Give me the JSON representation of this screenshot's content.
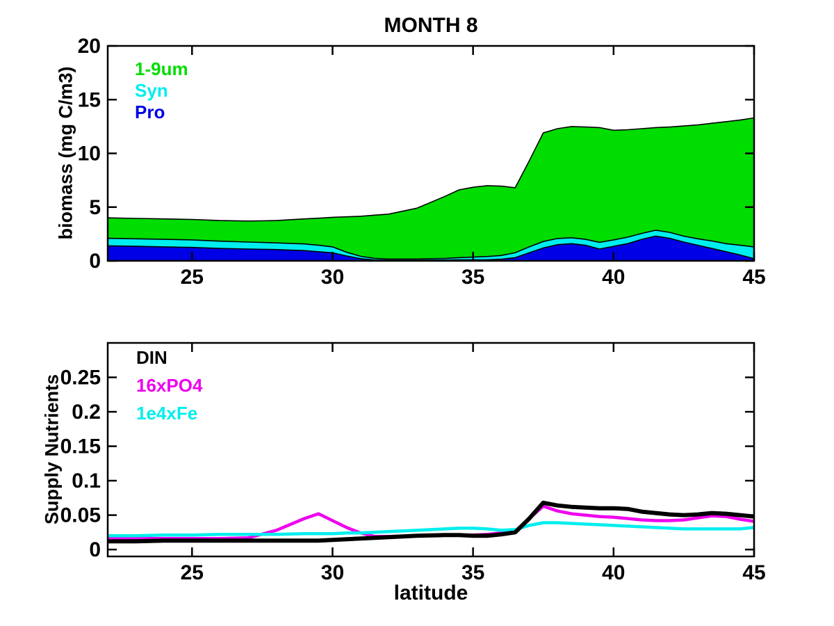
{
  "figure": {
    "title": "MONTH 8",
    "background": "#FFFFFF"
  },
  "chart_data": [
    {
      "id": "biomass-stacked-area",
      "type": "area",
      "title": "MONTH 8",
      "xlabel": "",
      "ylabel": "biomass (mg C/m3)",
      "xlim": [
        22,
        45
      ],
      "ylim": [
        0,
        20
      ],
      "xticks": [
        25,
        30,
        35,
        40,
        45
      ],
      "xtick_labels": [
        "25",
        "30",
        "35",
        "40",
        "45"
      ],
      "yticks": [
        0,
        5,
        10,
        15,
        20
      ],
      "ytick_labels": [
        "0",
        "5",
        "10",
        "15",
        "20"
      ],
      "grid": false,
      "legend_position": "top-left-inside",
      "stacking": "series values are cumulative upper boundaries, stacked from the x-axis (Pro bottom, Syn middle, 1-9um top)",
      "outline_color": "#000000",
      "x": [
        22,
        23,
        24,
        25,
        26,
        27,
        28,
        29,
        29.5,
        30,
        30.5,
        31,
        31.5,
        32,
        33,
        34,
        34.5,
        35,
        35.5,
        36,
        36.5,
        37,
        37.5,
        38,
        38.5,
        39,
        39.5,
        40,
        40.5,
        41,
        41.5,
        42,
        42.5,
        43,
        43.5,
        44,
        44.5,
        45
      ],
      "series": [
        {
          "name": "Pro",
          "color": "#0000E6",
          "cumulative_boundary": [
            1.4,
            1.35,
            1.3,
            1.25,
            1.15,
            1.1,
            1.05,
            0.95,
            0.85,
            0.75,
            0.45,
            0.2,
            0.08,
            0.05,
            0.05,
            0.08,
            0.1,
            0.1,
            0.1,
            0.15,
            0.3,
            0.75,
            1.2,
            1.5,
            1.6,
            1.45,
            1.1,
            1.35,
            1.6,
            2.0,
            2.3,
            2.1,
            1.75,
            1.45,
            1.15,
            0.85,
            0.55,
            0.2
          ]
        },
        {
          "name": "Syn",
          "color": "#00EEEE",
          "cumulative_boundary": [
            2.1,
            2.05,
            2.0,
            1.95,
            1.83,
            1.75,
            1.67,
            1.57,
            1.45,
            1.3,
            0.8,
            0.42,
            0.23,
            0.17,
            0.17,
            0.23,
            0.3,
            0.35,
            0.4,
            0.5,
            0.75,
            1.3,
            1.8,
            2.08,
            2.15,
            2.0,
            1.72,
            1.95,
            2.2,
            2.55,
            2.85,
            2.65,
            2.3,
            2.05,
            1.85,
            1.6,
            1.45,
            1.3
          ]
        },
        {
          "name": "1-9um",
          "color": "#00DD00",
          "cumulative_boundary": [
            4.0,
            3.95,
            3.9,
            3.85,
            3.75,
            3.7,
            3.75,
            3.9,
            3.97,
            4.05,
            4.1,
            4.15,
            4.25,
            4.35,
            4.9,
            6.0,
            6.6,
            6.85,
            7.0,
            6.95,
            6.8,
            9.3,
            11.9,
            12.3,
            12.5,
            12.45,
            12.4,
            12.15,
            12.2,
            12.3,
            12.4,
            12.45,
            12.55,
            12.65,
            12.8,
            12.95,
            13.1,
            13.3
          ]
        }
      ],
      "legend_order": [
        "1-9um",
        "Syn",
        "Pro"
      ]
    },
    {
      "id": "supply-nutrients-lines",
      "type": "line",
      "title": "",
      "xlabel": "latitude",
      "ylabel": "Supply Nutrients",
      "xlim": [
        22,
        45
      ],
      "ylim": [
        -0.01,
        0.3
      ],
      "xticks": [
        25,
        30,
        35,
        40,
        45
      ],
      "xtick_labels": [
        "25",
        "30",
        "35",
        "40",
        "45"
      ],
      "yticks": [
        0,
        0.05,
        0.1,
        0.15,
        0.2,
        0.25
      ],
      "ytick_labels": [
        "0",
        "0.05",
        "0.1",
        "0.15",
        "0.2",
        "0.25"
      ],
      "grid": false,
      "legend_position": "top-left-inside",
      "x": [
        22,
        23,
        24,
        25,
        26,
        27,
        28,
        29,
        29.5,
        30,
        30.5,
        31,
        31.5,
        32,
        33,
        34,
        34.5,
        35,
        35.5,
        36,
        36.5,
        37,
        37.5,
        38,
        38.5,
        39,
        39.5,
        40,
        40.5,
        41,
        41.5,
        42,
        42.5,
        43,
        43.5,
        44,
        44.5,
        45
      ],
      "series": [
        {
          "name": "DIN",
          "color": "#000000",
          "line_width": 6,
          "values": [
            0.012,
            0.012,
            0.013,
            0.013,
            0.013,
            0.013,
            0.013,
            0.013,
            0.013,
            0.014,
            0.015,
            0.016,
            0.017,
            0.018,
            0.02,
            0.021,
            0.021,
            0.02,
            0.02,
            0.022,
            0.025,
            0.045,
            0.068,
            0.064,
            0.062,
            0.061,
            0.06,
            0.06,
            0.059,
            0.055,
            0.053,
            0.051,
            0.05,
            0.051,
            0.053,
            0.052,
            0.05,
            0.048
          ]
        },
        {
          "name": "16xPO4",
          "color": "#EE00EE",
          "line_width": 4.5,
          "values": [
            0.016,
            0.016,
            0.016,
            0.016,
            0.016,
            0.017,
            0.028,
            0.045,
            0.052,
            0.042,
            0.032,
            0.024,
            0.019,
            0.019,
            0.02,
            0.021,
            0.021,
            0.021,
            0.022,
            0.024,
            0.027,
            0.045,
            0.063,
            0.056,
            0.052,
            0.05,
            0.048,
            0.047,
            0.045,
            0.043,
            0.042,
            0.042,
            0.043,
            0.046,
            0.049,
            0.048,
            0.044,
            0.041
          ]
        },
        {
          "name": "1e4xFe",
          "color": "#00EEEE",
          "line_width": 4.5,
          "values": [
            0.02,
            0.02,
            0.021,
            0.021,
            0.022,
            0.022,
            0.022,
            0.023,
            0.023,
            0.023,
            0.024,
            0.024,
            0.025,
            0.026,
            0.028,
            0.03,
            0.031,
            0.031,
            0.03,
            0.028,
            0.029,
            0.035,
            0.039,
            0.039,
            0.038,
            0.037,
            0.036,
            0.035,
            0.034,
            0.033,
            0.032,
            0.031,
            0.03,
            0.03,
            0.03,
            0.03,
            0.03,
            0.032
          ]
        }
      ]
    }
  ]
}
